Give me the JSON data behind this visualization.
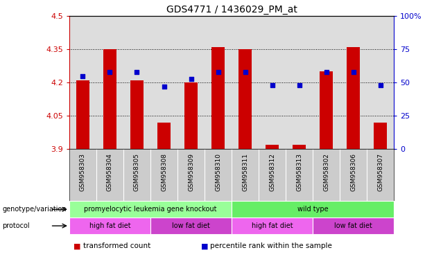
{
  "title": "GDS4771 / 1436029_PM_at",
  "samples": [
    "GSM958303",
    "GSM958304",
    "GSM958305",
    "GSM958308",
    "GSM958309",
    "GSM958310",
    "GSM958311",
    "GSM958312",
    "GSM958313",
    "GSM958302",
    "GSM958306",
    "GSM958307"
  ],
  "transformed_count": [
    4.21,
    4.35,
    4.21,
    4.02,
    4.2,
    4.36,
    4.35,
    3.92,
    3.92,
    4.25,
    4.36,
    4.02
  ],
  "percentile_rank": [
    55,
    58,
    58,
    47,
    53,
    58,
    58,
    48,
    48,
    58,
    58,
    48
  ],
  "ylim_left": [
    3.9,
    4.5
  ],
  "ylim_right": [
    0,
    100
  ],
  "yticks_left": [
    3.9,
    4.05,
    4.2,
    4.35,
    4.5
  ],
  "ytick_labels_left": [
    "3.9",
    "4.05",
    "4.2",
    "4.35",
    "4.5"
  ],
  "yticks_right": [
    0,
    25,
    50,
    75,
    100
  ],
  "ytick_labels_right": [
    "0",
    "25",
    "50",
    "75",
    "100%"
  ],
  "grid_yticks": [
    4.05,
    4.2,
    4.35
  ],
  "bar_color": "#cc0000",
  "dot_color": "#0000cc",
  "bar_bottom": 3.9,
  "genotype_groups": [
    {
      "label": "promyelocytic leukemia gene knockout",
      "start": 0,
      "end": 6,
      "color": "#99ff99"
    },
    {
      "label": "wild type",
      "start": 6,
      "end": 12,
      "color": "#66ee66"
    }
  ],
  "protocol_groups": [
    {
      "label": "high fat diet",
      "start": 0,
      "end": 3,
      "color": "#ee66ee"
    },
    {
      "label": "low fat diet",
      "start": 3,
      "end": 6,
      "color": "#cc44cc"
    },
    {
      "label": "high fat diet",
      "start": 6,
      "end": 9,
      "color": "#ee66ee"
    },
    {
      "label": "low fat diet",
      "start": 9,
      "end": 12,
      "color": "#cc44cc"
    }
  ],
  "legend_items": [
    {
      "label": "transformed count",
      "color": "#cc0000"
    },
    {
      "label": "percentile rank within the sample",
      "color": "#0000cc"
    }
  ],
  "background_color": "#ffffff",
  "plot_bg_color": "#dddddd",
  "left_axis_color": "#cc0000",
  "right_axis_color": "#0000cc",
  "label_left": "genotype/variation",
  "label_protocol": "protocol"
}
